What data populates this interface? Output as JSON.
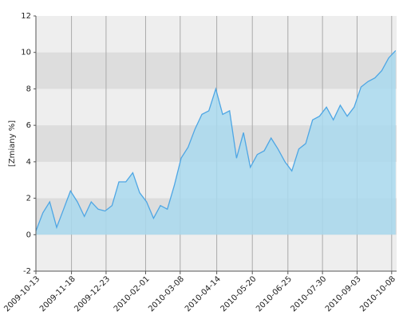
{
  "chart_data": {
    "type": "area",
    "y_label": "[Zmiany %]",
    "x": [
      "2009-10-13",
      "2009-10-20",
      "2009-10-27",
      "2009-11-03",
      "2009-11-10",
      "2009-11-17",
      "2009-11-24",
      "2009-12-01",
      "2009-12-08",
      "2009-12-15",
      "2009-12-22",
      "2009-12-29",
      "2010-01-05",
      "2010-01-12",
      "2010-01-19",
      "2010-01-26",
      "2010-02-02",
      "2010-02-09",
      "2010-02-16",
      "2010-02-23",
      "2010-03-02",
      "2010-03-09",
      "2010-03-16",
      "2010-03-23",
      "2010-03-30",
      "2010-04-06",
      "2010-04-13",
      "2010-04-20",
      "2010-04-27",
      "2010-05-04",
      "2010-05-11",
      "2010-05-18",
      "2010-05-25",
      "2010-06-01",
      "2010-06-08",
      "2010-06-15",
      "2010-06-22",
      "2010-06-29",
      "2010-07-06",
      "2010-07-13",
      "2010-07-20",
      "2010-07-27",
      "2010-08-03",
      "2010-08-10",
      "2010-08-17",
      "2010-08-24",
      "2010-08-31",
      "2010-09-07",
      "2010-09-14",
      "2010-09-21",
      "2010-09-28",
      "2010-10-05",
      "2010-10-12"
    ],
    "values": [
      0.2,
      1.2,
      1.8,
      0.4,
      1.4,
      2.4,
      1.8,
      1.0,
      1.8,
      1.4,
      1.3,
      1.6,
      2.9,
      2.9,
      3.4,
      2.3,
      1.8,
      0.9,
      1.6,
      1.4,
      2.7,
      4.2,
      4.8,
      5.8,
      6.6,
      6.8,
      8.0,
      6.6,
      6.8,
      4.2,
      5.6,
      3.7,
      4.4,
      4.6,
      5.3,
      4.7,
      4.0,
      3.5,
      4.7,
      5.0,
      6.3,
      6.5,
      7.0,
      6.3,
      7.1,
      6.5,
      7.0,
      8.1,
      8.4,
      8.6,
      9.0,
      9.7,
      10.1
    ],
    "color": "#4ea6e4",
    "fill": "#a9d9ef",
    "xlim": [
      "2009-10-13",
      "2010-10-13"
    ],
    "xticks": [
      "2009-10-13",
      "2009-11-18",
      "2009-12-23",
      "2010-02-01",
      "2010-03-08",
      "2010-04-14",
      "2010-05-20",
      "2010-06-25",
      "2010-07-30",
      "2010-09-03",
      "2010-10-08"
    ],
    "ylim": [
      -2,
      12
    ],
    "yticks": [
      -2,
      0,
      2,
      4,
      6,
      8,
      10,
      12
    ],
    "grid": true
  }
}
